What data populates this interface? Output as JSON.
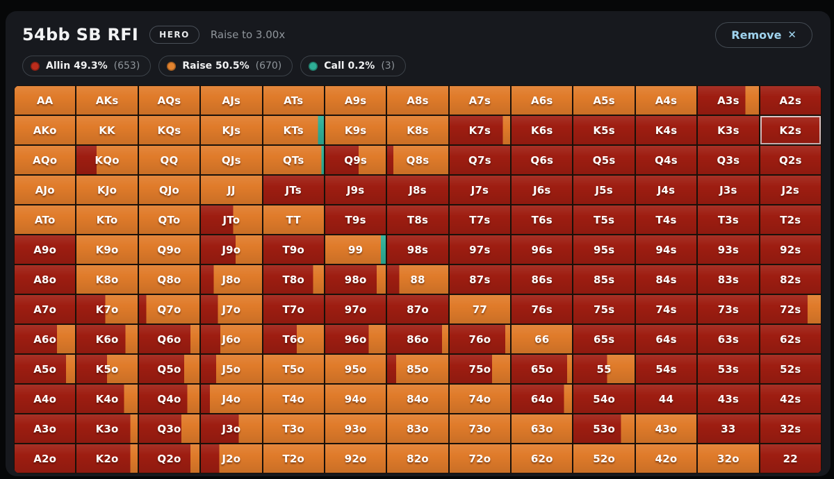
{
  "header": {
    "title": "54bb SB RFI",
    "badge": "HERO",
    "subtitle": "Raise to 3.00x",
    "remove_label": "Remove",
    "remove_icon": "✕"
  },
  "legend": [
    {
      "label": "Allin 49.3%",
      "count": "(653)",
      "color": "#bb2d1d"
    },
    {
      "label": "Raise 50.5%",
      "count": "(670)",
      "color": "#e2832f"
    },
    {
      "label": "Call 0.2%",
      "count": "(3)",
      "color": "#2fae96"
    }
  ],
  "colors": {
    "a": "#9e1d11",
    "r": "#e07b2a",
    "c": "#2fae96"
  },
  "grid": {
    "rows": [
      [
        {
          "h": "AA",
          "s": "r"
        },
        {
          "h": "AKs",
          "s": "r"
        },
        {
          "h": "AQs",
          "s": "r"
        },
        {
          "h": "AJs",
          "s": "r"
        },
        {
          "h": "ATs",
          "s": "r"
        },
        {
          "h": "A9s",
          "s": "r"
        },
        {
          "h": "A8s",
          "s": "r"
        },
        {
          "h": "A7s",
          "s": "r"
        },
        {
          "h": "A6s",
          "s": "r"
        },
        {
          "h": "A5s",
          "s": "r"
        },
        {
          "h": "A4s",
          "s": "r"
        },
        {
          "h": "A3s",
          "s": "a78r22"
        },
        {
          "h": "A2s",
          "s": "a"
        }
      ],
      [
        {
          "h": "AKo",
          "s": "r"
        },
        {
          "h": "KK",
          "s": "r"
        },
        {
          "h": "KQs",
          "s": "r"
        },
        {
          "h": "KJs",
          "s": "r"
        },
        {
          "h": "KTs",
          "s": "r90c10"
        },
        {
          "h": "K9s",
          "s": "r"
        },
        {
          "h": "K8s",
          "s": "r"
        },
        {
          "h": "K7s",
          "s": "a88r12"
        },
        {
          "h": "K6s",
          "s": "a"
        },
        {
          "h": "K5s",
          "s": "a"
        },
        {
          "h": "K4s",
          "s": "a"
        },
        {
          "h": "K3s",
          "s": "a"
        },
        {
          "h": "K2s",
          "s": "a",
          "hl": true
        }
      ],
      [
        {
          "h": "AQo",
          "s": "r"
        },
        {
          "h": "KQo",
          "s": "a33r67"
        },
        {
          "h": "QQ",
          "s": "r"
        },
        {
          "h": "QJs",
          "s": "r"
        },
        {
          "h": "QTs",
          "s": "r96c4"
        },
        {
          "h": "Q9s",
          "s": "a55r45"
        },
        {
          "h": "Q8s",
          "s": "a10r90"
        },
        {
          "h": "Q7s",
          "s": "a"
        },
        {
          "h": "Q6s",
          "s": "a"
        },
        {
          "h": "Q5s",
          "s": "a"
        },
        {
          "h": "Q4s",
          "s": "a"
        },
        {
          "h": "Q3s",
          "s": "a"
        },
        {
          "h": "Q2s",
          "s": "a"
        }
      ],
      [
        {
          "h": "AJo",
          "s": "r"
        },
        {
          "h": "KJo",
          "s": "r"
        },
        {
          "h": "QJo",
          "s": "r"
        },
        {
          "h": "JJ",
          "s": "r"
        },
        {
          "h": "JTs",
          "s": "a"
        },
        {
          "h": "J9s",
          "s": "a"
        },
        {
          "h": "J8s",
          "s": "a"
        },
        {
          "h": "J7s",
          "s": "a"
        },
        {
          "h": "J6s",
          "s": "a"
        },
        {
          "h": "J5s",
          "s": "a"
        },
        {
          "h": "J4s",
          "s": "a"
        },
        {
          "h": "J3s",
          "s": "a"
        },
        {
          "h": "J2s",
          "s": "a"
        }
      ],
      [
        {
          "h": "ATo",
          "s": "r"
        },
        {
          "h": "KTo",
          "s": "r"
        },
        {
          "h": "QTo",
          "s": "r"
        },
        {
          "h": "JTo",
          "s": "a53r47"
        },
        {
          "h": "TT",
          "s": "r"
        },
        {
          "h": "T9s",
          "s": "a"
        },
        {
          "h": "T8s",
          "s": "a"
        },
        {
          "h": "T7s",
          "s": "a"
        },
        {
          "h": "T6s",
          "s": "a"
        },
        {
          "h": "T5s",
          "s": "a"
        },
        {
          "h": "T4s",
          "s": "a"
        },
        {
          "h": "T3s",
          "s": "a"
        },
        {
          "h": "T2s",
          "s": "a"
        }
      ],
      [
        {
          "h": "A9o",
          "s": "a"
        },
        {
          "h": "K9o",
          "s": "r"
        },
        {
          "h": "Q9o",
          "s": "r"
        },
        {
          "h": "J9o",
          "s": "a57r43"
        },
        {
          "h": "T9o",
          "s": "a"
        },
        {
          "h": "99",
          "s": "r92c8"
        },
        {
          "h": "98s",
          "s": "a"
        },
        {
          "h": "97s",
          "s": "a"
        },
        {
          "h": "96s",
          "s": "a"
        },
        {
          "h": "95s",
          "s": "a"
        },
        {
          "h": "94s",
          "s": "a"
        },
        {
          "h": "93s",
          "s": "a"
        },
        {
          "h": "92s",
          "s": "a"
        }
      ],
      [
        {
          "h": "A8o",
          "s": "a"
        },
        {
          "h": "K8o",
          "s": "r"
        },
        {
          "h": "Q8o",
          "s": "r"
        },
        {
          "h": "J8o",
          "s": "a21r79"
        },
        {
          "h": "T8o",
          "s": "a82r18"
        },
        {
          "h": "98o",
          "s": "a85r15"
        },
        {
          "h": "88",
          "s": "a20r80"
        },
        {
          "h": "87s",
          "s": "a"
        },
        {
          "h": "86s",
          "s": "a"
        },
        {
          "h": "85s",
          "s": "a"
        },
        {
          "h": "84s",
          "s": "a"
        },
        {
          "h": "83s",
          "s": "a"
        },
        {
          "h": "82s",
          "s": "a"
        }
      ],
      [
        {
          "h": "A7o",
          "s": "a"
        },
        {
          "h": "K7o",
          "s": "a47r53"
        },
        {
          "h": "Q7o",
          "s": "a12r88"
        },
        {
          "h": "J7o",
          "s": "a28r72"
        },
        {
          "h": "T7o",
          "s": "a"
        },
        {
          "h": "97o",
          "s": "a"
        },
        {
          "h": "87o",
          "s": "a"
        },
        {
          "h": "77",
          "s": "r"
        },
        {
          "h": "76s",
          "s": "a"
        },
        {
          "h": "75s",
          "s": "a"
        },
        {
          "h": "74s",
          "s": "a"
        },
        {
          "h": "73s",
          "s": "a"
        },
        {
          "h": "72s",
          "s": "a78r22"
        }
      ],
      [
        {
          "h": "A6o",
          "s": "a70r30"
        },
        {
          "h": "K6o",
          "s": "a80r20"
        },
        {
          "h": "Q6o",
          "s": "a85r15"
        },
        {
          "h": "J6o",
          "s": "a32r68"
        },
        {
          "h": "T6o",
          "s": "a55r45"
        },
        {
          "h": "96o",
          "s": "a72r28"
        },
        {
          "h": "86o",
          "s": "a90r10"
        },
        {
          "h": "76o",
          "s": "a92r8"
        },
        {
          "h": "66",
          "s": "r"
        },
        {
          "h": "65s",
          "s": "a"
        },
        {
          "h": "64s",
          "s": "a"
        },
        {
          "h": "63s",
          "s": "a"
        },
        {
          "h": "62s",
          "s": "a"
        }
      ],
      [
        {
          "h": "A5o",
          "s": "a85r15"
        },
        {
          "h": "K5o",
          "s": "a50r50"
        },
        {
          "h": "Q5o",
          "s": "a75r25"
        },
        {
          "h": "J5o",
          "s": "a25r75"
        },
        {
          "h": "T5o",
          "s": "r"
        },
        {
          "h": "95o",
          "s": "r"
        },
        {
          "h": "85o",
          "s": "a15r85"
        },
        {
          "h": "75o",
          "s": "a70r30"
        },
        {
          "h": "65o",
          "s": "a92r8"
        },
        {
          "h": "55",
          "s": "a55r45"
        },
        {
          "h": "54s",
          "s": "a"
        },
        {
          "h": "53s",
          "s": "a"
        },
        {
          "h": "52s",
          "s": "a"
        }
      ],
      [
        {
          "h": "A4o",
          "s": "a"
        },
        {
          "h": "K4o",
          "s": "a78r22"
        },
        {
          "h": "Q4o",
          "s": "a80r20"
        },
        {
          "h": "J4o",
          "s": "a15r85"
        },
        {
          "h": "T4o",
          "s": "r"
        },
        {
          "h": "94o",
          "s": "r"
        },
        {
          "h": "84o",
          "s": "r"
        },
        {
          "h": "74o",
          "s": "r"
        },
        {
          "h": "64o",
          "s": "a87r13"
        },
        {
          "h": "54o",
          "s": "a"
        },
        {
          "h": "44",
          "s": "a"
        },
        {
          "h": "43s",
          "s": "a"
        },
        {
          "h": "42s",
          "s": "a"
        }
      ],
      [
        {
          "h": "A3o",
          "s": "a"
        },
        {
          "h": "K3o",
          "s": "a88r12"
        },
        {
          "h": "Q3o",
          "s": "a70r30"
        },
        {
          "h": "J3o",
          "s": "a62r38"
        },
        {
          "h": "T3o",
          "s": "r"
        },
        {
          "h": "93o",
          "s": "r"
        },
        {
          "h": "83o",
          "s": "r"
        },
        {
          "h": "73o",
          "s": "r"
        },
        {
          "h": "63o",
          "s": "r"
        },
        {
          "h": "53o",
          "s": "a78r22"
        },
        {
          "h": "43o",
          "s": "r"
        },
        {
          "h": "33",
          "s": "a"
        },
        {
          "h": "32s",
          "s": "a"
        }
      ],
      [
        {
          "h": "A2o",
          "s": "a"
        },
        {
          "h": "K2o",
          "s": "a88r12"
        },
        {
          "h": "Q2o",
          "s": "a85r15"
        },
        {
          "h": "J2o",
          "s": "a30r70"
        },
        {
          "h": "T2o",
          "s": "r"
        },
        {
          "h": "92o",
          "s": "r"
        },
        {
          "h": "82o",
          "s": "r"
        },
        {
          "h": "72o",
          "s": "r"
        },
        {
          "h": "62o",
          "s": "r"
        },
        {
          "h": "52o",
          "s": "r"
        },
        {
          "h": "42o",
          "s": "r"
        },
        {
          "h": "32o",
          "s": "r"
        },
        {
          "h": "22",
          "s": "a"
        }
      ]
    ]
  }
}
